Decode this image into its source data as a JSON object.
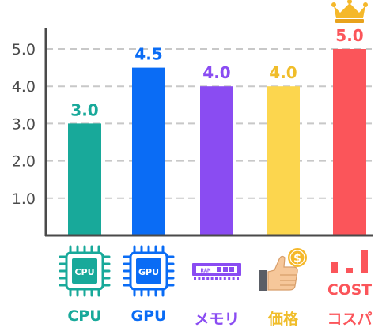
{
  "chart_data": {
    "type": "bar",
    "categories": [
      "CPU",
      "GPU",
      "メモリ",
      "価格",
      "コスパ"
    ],
    "values": [
      3.0,
      4.5,
      4.0,
      4.0,
      5.0
    ],
    "value_labels": [
      "3.0",
      "4.5",
      "4.0",
      "4.0",
      "5.0"
    ],
    "colors": [
      "#18a99a",
      "#0a6cf5",
      "#8a4cf2",
      "#fcd64e",
      "#fb555a"
    ],
    "label_colors": [
      "#18a99a",
      "#0a6cf5",
      "#8a4cf2",
      "#f0bd2a",
      "#fb555a"
    ],
    "icons": [
      "cpu-chip-icon",
      "gpu-chip-icon",
      "ram-module-icon",
      "thumbs-up-coin-icon",
      "cost-chart-icon"
    ],
    "icon_text": {
      "cpu": "CPU",
      "gpu": "GPU",
      "ram": "RAM",
      "coin": "$",
      "cost": "COST"
    },
    "highlight_icon": "crown-icon",
    "y_ticks": [
      "1.0",
      "2.0",
      "3.0",
      "4.0",
      "5.0"
    ],
    "ylim": [
      0,
      5.5
    ],
    "grid": true,
    "grid_style": "dashed",
    "title": "",
    "xlabel": "",
    "ylabel": ""
  }
}
